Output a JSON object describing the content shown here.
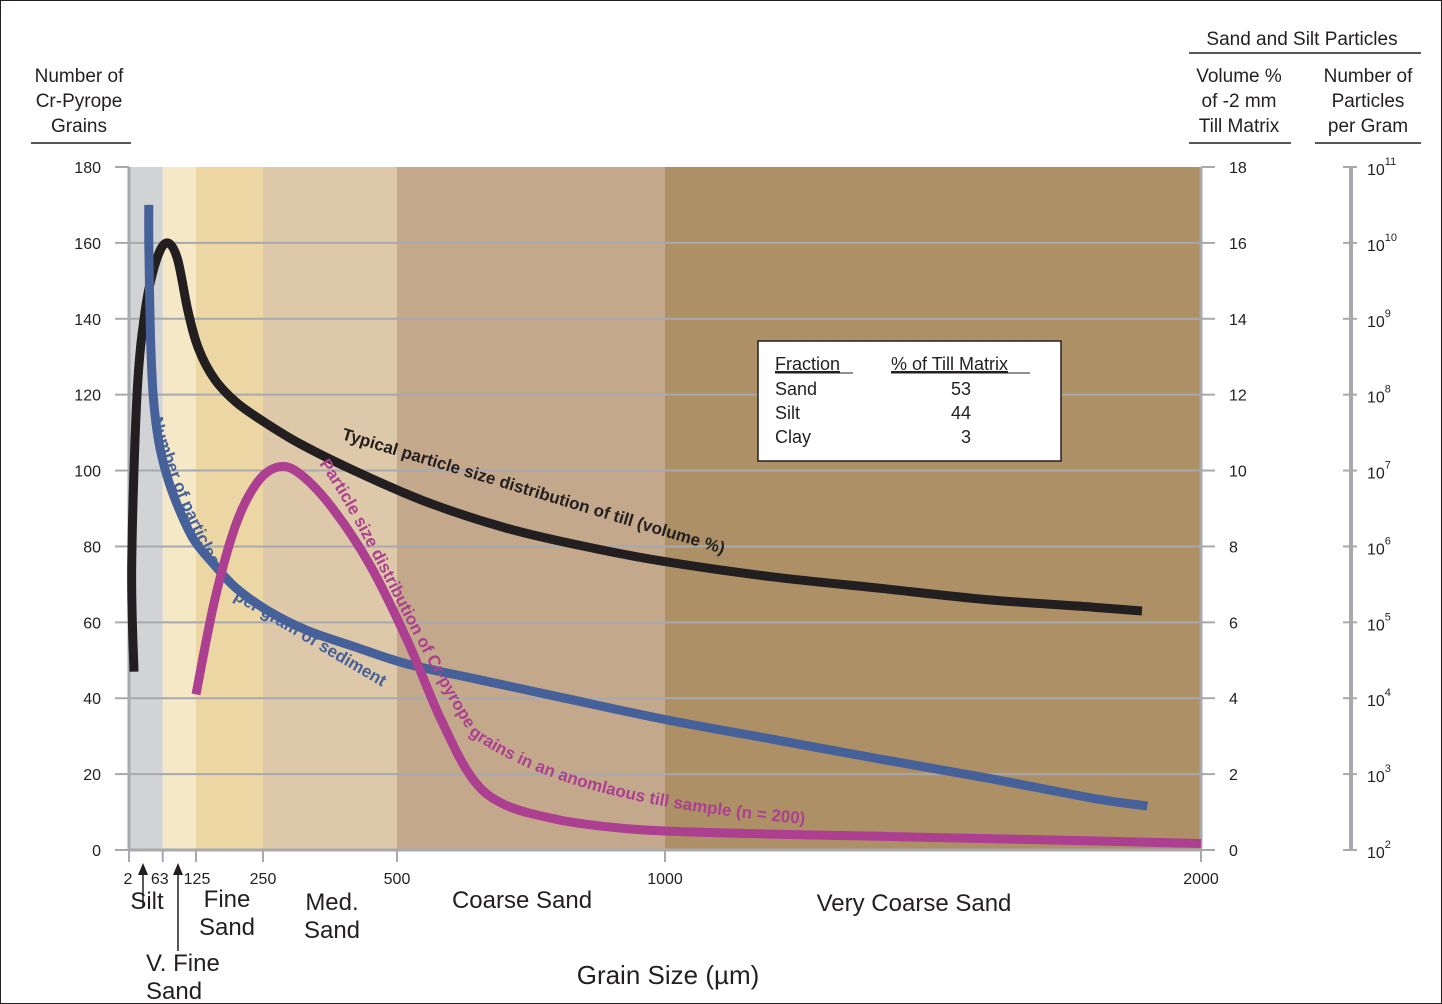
{
  "chart_data": {
    "type": "line",
    "xlabel": "Grain Size (µm)",
    "x_ticks": [
      2,
      63,
      125,
      250,
      500,
      1000,
      2000
    ],
    "x_tick_labels": [
      "2",
      "63",
      "125",
      "250",
      "500",
      "1000",
      "2000"
    ],
    "xlim": [
      0,
      2000
    ],
    "left_axis": {
      "label_lines": [
        "Number of",
        "Cr-Pyrope",
        "Grains"
      ],
      "ylim": [
        0,
        180
      ],
      "ticks": [
        0,
        20,
        40,
        60,
        80,
        100,
        120,
        140,
        160,
        180
      ]
    },
    "right_axis_header": "Sand and Silt Particles",
    "right_axis_volume": {
      "label_lines": [
        "Volume %",
        "of -2 mm",
        "Till Matrix"
      ],
      "ylim": [
        0,
        18
      ],
      "ticks": [
        0,
        2,
        4,
        6,
        8,
        10,
        12,
        14,
        16,
        18
      ]
    },
    "right_axis_particles": {
      "label_lines": [
        "Number of",
        "Particles",
        "per Gram"
      ],
      "scale": "log",
      "ticks": [
        {
          "base": "10",
          "exp": "2"
        },
        {
          "base": "10",
          "exp": "3"
        },
        {
          "base": "10",
          "exp": "4"
        },
        {
          "base": "10",
          "exp": "5"
        },
        {
          "base": "10",
          "exp": "6"
        },
        {
          "base": "10",
          "exp": "7"
        },
        {
          "base": "10",
          "exp": "8"
        },
        {
          "base": "10",
          "exp": "9"
        },
        {
          "base": "10",
          "exp": "10"
        },
        {
          "base": "10",
          "exp": "11"
        }
      ]
    },
    "zones": [
      {
        "label_lines": [
          "Silt"
        ],
        "x0": 2,
        "x1": 63,
        "color": "#d2d3d5",
        "label_x": 35
      },
      {
        "label_lines": [
          "V. Fine",
          "Sand"
        ],
        "x0": 63,
        "x1": 125,
        "color": "#f5e8c7",
        "label_x": 94
      },
      {
        "label_lines": [
          "Fine",
          "Sand"
        ],
        "x0": 125,
        "x1": 250,
        "color": "#ecd6a3",
        "label_x": 188
      },
      {
        "label_lines": [
          "Med.",
          "Sand"
        ],
        "x0": 250,
        "x1": 500,
        "color": "#ddc9a9",
        "label_x": 380
      },
      {
        "label_lines": [
          "Coarse Sand"
        ],
        "x0": 500,
        "x1": 1000,
        "color": "#c4a88c",
        "label_x": 460
      },
      {
        "label_lines": [
          "Very Coarse Sand"
        ],
        "x0": 1000,
        "x1": 2000,
        "color": "#ae9066",
        "label_x": 1312
      }
    ],
    "grid": true,
    "series": [
      {
        "name": "Typical particle size distribution of till (volume %)",
        "axis": "volume",
        "color": "#231f20",
        "x": [
          2,
          5,
          15,
          30,
          50,
          70,
          90,
          110,
          130,
          160,
          200,
          250,
          320,
          420,
          550,
          700,
          850,
          1000,
          1200,
          1400,
          1600,
          1800,
          1890
        ],
        "y": [
          4.7,
          7.5,
          12.0,
          14.2,
          15.5,
          16.0,
          15.6,
          14.2,
          13.2,
          12.4,
          11.8,
          11.3,
          10.7,
          10.0,
          9.2,
          8.5,
          8.0,
          7.6,
          7.2,
          6.9,
          6.6,
          6.4,
          6.3
        ]
      },
      {
        "name": "Number of particles per gram of sediment",
        "axis": "particles_log",
        "color": "#46609a",
        "x": [
          37,
          37,
          40,
          45,
          55,
          70,
          90,
          120,
          160,
          200,
          260,
          330,
          420,
          520,
          650,
          800,
          1000,
          1200,
          1400,
          1600,
          1800,
          1900
        ],
        "y": [
          10.5,
          10.0,
          8.8,
          8.0,
          7.4,
          6.95,
          6.55,
          6.1,
          5.75,
          5.45,
          5.15,
          4.9,
          4.68,
          4.45,
          4.25,
          4.02,
          3.72,
          3.46,
          3.2,
          2.95,
          2.68,
          2.58
        ]
      },
      {
        "name": "Particle size distribution of Cr-pyrope grains in an anomlaous till sample (n = 200)",
        "axis": "left",
        "color": "#ac3f8f",
        "x": [
          125,
          160,
          200,
          240,
          280,
          320,
          380,
          450,
          520,
          580,
          640,
          700,
          800,
          900,
          1000,
          1200,
          1400,
          1600,
          1800,
          2000
        ],
        "y": [
          41,
          66,
          86,
          97,
          101,
          99,
          90,
          75,
          55,
          35,
          19,
          12,
          8,
          6,
          5,
          4.2,
          3.6,
          3.0,
          2.4,
          1.7
        ]
      }
    ],
    "table": {
      "headers": [
        "Fraction",
        "% of Till Matrix"
      ],
      "rows": [
        [
          "Sand",
          "53"
        ],
        [
          "Silt",
          "44"
        ],
        [
          "Clay",
          "3"
        ]
      ]
    }
  }
}
